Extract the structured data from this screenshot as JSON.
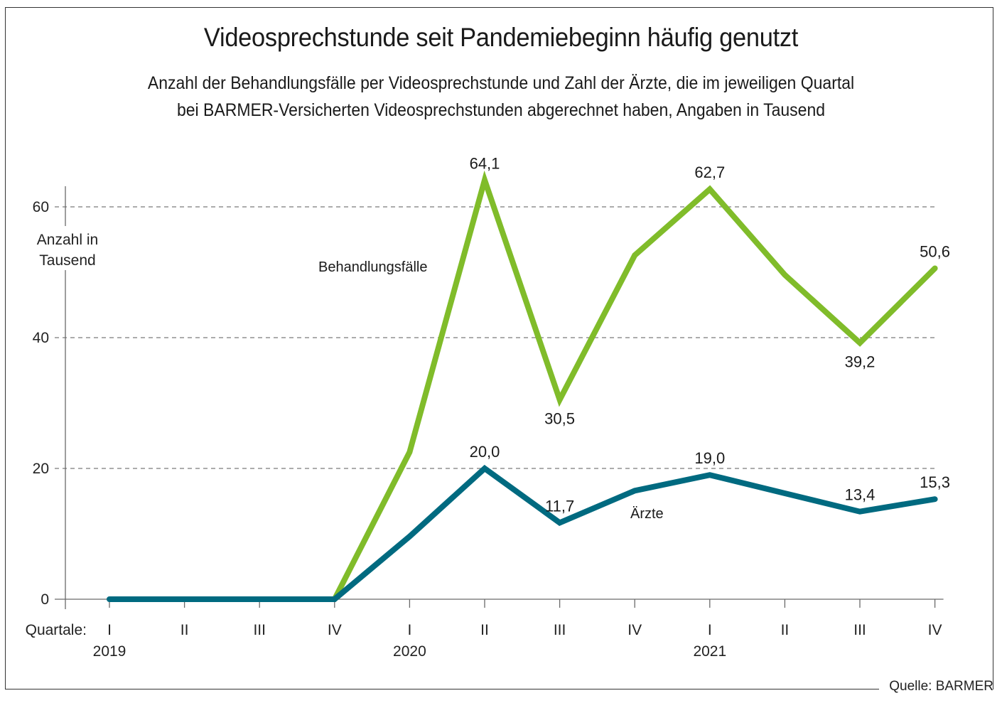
{
  "chart_data": {
    "type": "line",
    "title": "Videosprechstunde seit Pandemiebeginn häufig genutzt",
    "subtitle_lines": [
      "Anzahl der Behandlungsfälle per Videosprechstunde und Zahl der Ärzte, die im jeweiligen Quartal",
      "bei BARMER-Versicherten Videosprechstunden abgerechnet haben, Angaben in Tausend"
    ],
    "ylabel_lines": [
      "Anzahl in",
      "Tausend"
    ],
    "xlabel": "Quartale:",
    "ylim": [
      0,
      64.1
    ],
    "yticks": [
      0,
      20,
      40,
      60
    ],
    "ytick_labels": [
      "0",
      "20",
      "40",
      "60"
    ],
    "grid": "dashed horizontal",
    "categories": [
      "I",
      "II",
      "III",
      "IV",
      "I",
      "II",
      "III",
      "IV",
      "I",
      "II",
      "III",
      "IV"
    ],
    "years": [
      {
        "label": "2019",
        "at_index": 0
      },
      {
        "label": "2020",
        "at_index": 4
      },
      {
        "label": "2021",
        "at_index": 8
      }
    ],
    "series": [
      {
        "name": "Behandlungsfälle",
        "color": "#80bc2a",
        "values": [
          0,
          0,
          0,
          0,
          22.5,
          64.1,
          30.5,
          52.6,
          62.7,
          49.6,
          39.2,
          50.6
        ],
        "data_labels": [
          {
            "index": 5,
            "text": "64,1",
            "position": "above"
          },
          {
            "index": 6,
            "text": "30,5",
            "position": "below"
          },
          {
            "index": 8,
            "text": "62,7",
            "position": "above"
          },
          {
            "index": 10,
            "text": "39,2",
            "position": "below"
          },
          {
            "index": 11,
            "text": "50,6",
            "position": "above"
          }
        ]
      },
      {
        "name": "Ärzte",
        "color": "#006a80",
        "values": [
          0,
          0,
          0,
          0,
          9.6,
          20.0,
          11.7,
          16.6,
          19.0,
          16.2,
          13.4,
          15.3
        ],
        "data_labels": [
          {
            "index": 5,
            "text": "20,0",
            "position": "above"
          },
          {
            "index": 6,
            "text": "11,7",
            "position": "above"
          },
          {
            "index": 8,
            "text": "19,0",
            "position": "above"
          },
          {
            "index": 10,
            "text": "13,4",
            "position": "above"
          },
          {
            "index": 11,
            "text": "15,3",
            "position": "above"
          }
        ]
      }
    ],
    "source": "Quelle: BARMER"
  }
}
